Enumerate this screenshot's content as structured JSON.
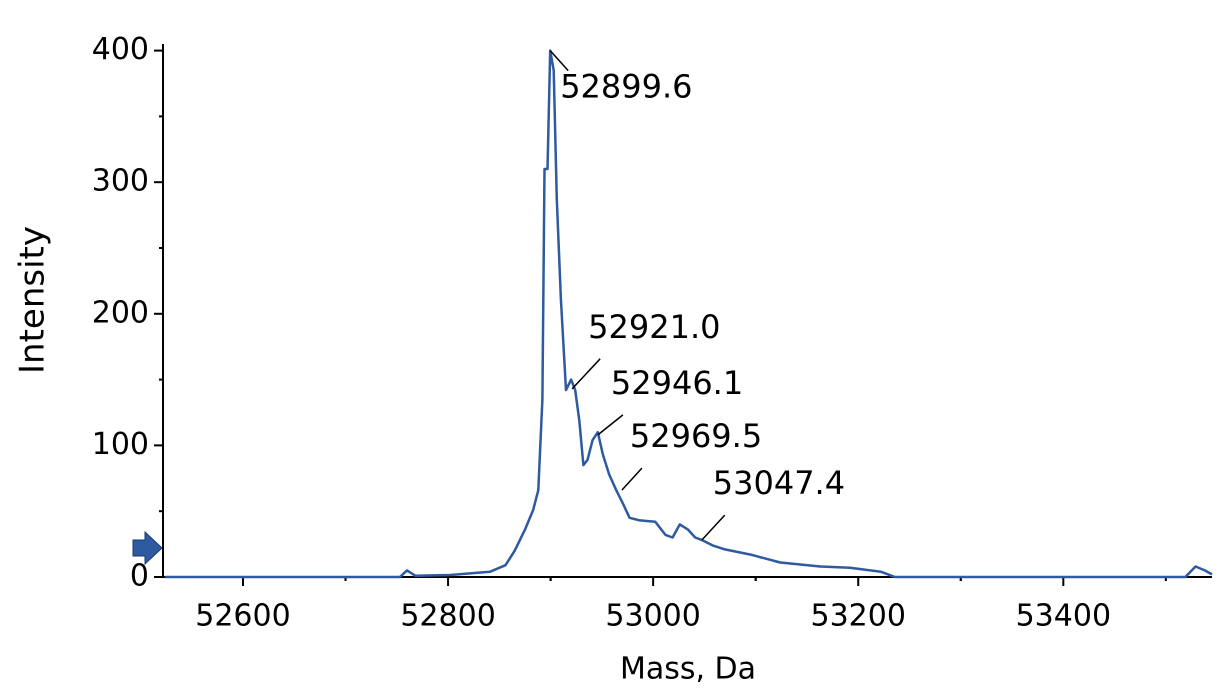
{
  "chart_data": {
    "type": "line",
    "xlabel": "Mass, Da",
    "ylabel": "Intensity",
    "xlim": [
      52522,
      53545
    ],
    "ylim": [
      0,
      405
    ],
    "xticks": [
      52600,
      52800,
      53000,
      53200,
      53400
    ],
    "yticks": [
      0,
      100,
      200,
      300,
      400
    ],
    "series": [
      {
        "color": "#2e5aa0",
        "x": [
          52524,
          52753,
          52760,
          52768,
          52802,
          52841,
          52856,
          52865,
          52875,
          52883,
          52888,
          52892,
          52894,
          52897,
          52899.6,
          52903,
          52906,
          52910,
          52915,
          52920,
          52924,
          52928,
          52932,
          52936,
          52941,
          52946,
          52951,
          52957,
          52964,
          52971,
          52977,
          52987,
          53002,
          53012,
          53019,
          53026,
          53034,
          53041,
          53048,
          53058,
          53070,
          53095,
          53124,
          53163,
          53192,
          53222,
          53236,
          53519,
          53529,
          53538,
          53545
        ],
        "values": [
          0,
          0,
          5,
          1,
          1.5,
          4,
          9,
          20,
          36,
          51,
          66,
          135,
          310,
          310,
          400,
          385,
          287,
          211,
          142,
          150,
          142,
          119,
          85,
          89,
          104,
          110,
          93,
          78,
          66,
          55,
          45,
          43,
          42,
          32,
          30,
          40,
          36,
          30,
          28,
          24,
          21,
          17,
          11,
          8,
          7,
          4,
          0,
          0,
          8,
          5,
          2
        ]
      }
    ],
    "peaks": {
      "x": [
        52899.6,
        52921.0,
        52946.1,
        52969.5,
        53047.4
      ],
      "y": [
        400,
        143,
        108,
        66,
        28
      ],
      "value_labels": [
        "52899.6",
        "52921.0",
        "52946.1",
        "52969.5",
        "53047.4"
      ]
    }
  }
}
